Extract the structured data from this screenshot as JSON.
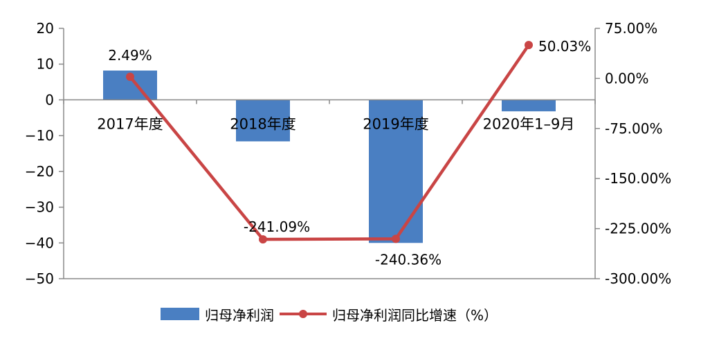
{
  "chart_data": {
    "type": "bar",
    "categories": [
      "2017年度",
      "2018年度",
      "2019年度",
      "2020年1–9月"
    ],
    "series": [
      {
        "name": "归母净利润",
        "type": "bar",
        "axis": "left",
        "values": [
          8.2,
          -11.6,
          -40.0,
          -3.2
        ],
        "color": "#4a7fc2"
      },
      {
        "name": "归母净利润同比增速（%）",
        "type": "line",
        "axis": "right",
        "values": [
          2.49,
          -241.09,
          -240.36,
          50.03
        ],
        "labels": [
          "2.49%",
          "-241.09%",
          "-240.36%",
          "50.03%"
        ],
        "color": "#c94545"
      }
    ],
    "left_axis": {
      "ylim": [
        -50,
        20
      ],
      "ticks": [
        20,
        10,
        0,
        -10,
        -20,
        -30,
        -40,
        -50
      ],
      "tick_labels": [
        "20",
        "10",
        "0",
        "−10",
        "−20",
        "−30",
        "−40",
        "−50"
      ]
    },
    "right_axis": {
      "ylim": [
        -300,
        75
      ],
      "ticks": [
        75,
        0,
        -75,
        -150,
        -225,
        -300
      ],
      "tick_labels": [
        "75.00%",
        "0.00%",
        "-75.00%",
        "-150.00%",
        "-225.00%",
        "-300.00%"
      ]
    },
    "grid": false,
    "legend_position": "bottom"
  }
}
